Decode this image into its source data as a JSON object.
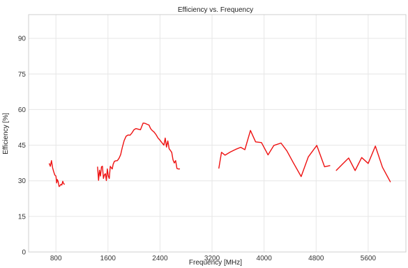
{
  "chart_data": {
    "type": "line",
    "title": "Efficiency vs. Frequency",
    "xlabel": "Frequency [MHz]",
    "ylabel": "Efficiency [%]",
    "xlim": [
      380,
      6180
    ],
    "ylim": [
      0,
      100
    ],
    "xticks": [
      800,
      1600,
      2400,
      3200,
      4000,
      4800,
      5600
    ],
    "yticks": [
      0,
      15,
      30,
      45,
      60,
      75,
      90
    ],
    "grid": true,
    "legend": "none",
    "colors": {
      "line": "#ee1111"
    },
    "segments": [
      {
        "x": [
          698,
          715,
          732,
          749,
          766,
          783,
          800,
          812,
          822,
          835,
          848,
          860,
          875,
          890,
          905,
          917,
          930
        ],
        "y": [
          37.2,
          36.1,
          38.5,
          35.5,
          33.8,
          32.4,
          32.0,
          29.1,
          30.5,
          29.7,
          27.6,
          27.8,
          28.5,
          28.2,
          29.8,
          28.8,
          28.6
        ]
      },
      {
        "x": [
          1440,
          1455,
          1470,
          1485,
          1500,
          1515,
          1530,
          1545,
          1560,
          1575,
          1590,
          1605,
          1620,
          1635,
          1650,
          1665,
          1680,
          1700,
          1720,
          1745,
          1770,
          1795,
          1820,
          1850,
          1880,
          1910,
          1940,
          1970,
          2000,
          2030,
          2060,
          2100,
          2140,
          2170,
          2200,
          2230,
          2255,
          2280,
          2310,
          2340,
          2370,
          2400,
          2430,
          2460,
          2480,
          2500,
          2520,
          2540,
          2560,
          2580,
          2600,
          2620,
          2640,
          2660,
          2680,
          2700
        ],
        "y": [
          35.8,
          30.2,
          34.5,
          32.0,
          35.9,
          36.1,
          31.0,
          32.5,
          33.0,
          30.1,
          35.0,
          32.0,
          31.0,
          36.1,
          35.5,
          35.0,
          37.0,
          38.2,
          38.4,
          38.5,
          39.5,
          41.0,
          44.0,
          47.0,
          48.8,
          49.3,
          49.2,
          50.2,
          51.5,
          52.0,
          51.8,
          51.5,
          54.3,
          54.2,
          53.8,
          53.5,
          52.0,
          51.2,
          50.5,
          49.4,
          48.0,
          47.1,
          46.0,
          45.0,
          48.0,
          44.2,
          46.8,
          43.5,
          42.8,
          42.0,
          38.8,
          37.5,
          38.5,
          35.2,
          35.0,
          35.0
        ]
      },
      {
        "x": [
          3305,
          3345,
          3400,
          3480,
          3560,
          3640,
          3705,
          3790,
          3870,
          3960,
          4060,
          4150,
          4260,
          4350,
          4450,
          4570,
          4680,
          4810,
          4930,
          5010
        ],
        "y": [
          35.3,
          42.0,
          40.8,
          42.1,
          43.2,
          44.1,
          43.1,
          51.2,
          46.4,
          46.1,
          40.9,
          44.9,
          45.9,
          42.6,
          37.6,
          31.8,
          40.1,
          44.9,
          35.9,
          36.4
        ]
      },
      {
        "x": [
          5110,
          5200,
          5300,
          5400,
          5500,
          5600,
          5710,
          5820,
          5940
        ],
        "y": [
          34.4,
          36.9,
          39.6,
          34.3,
          39.8,
          37.3,
          44.6,
          35.7,
          29.6
        ]
      }
    ]
  }
}
